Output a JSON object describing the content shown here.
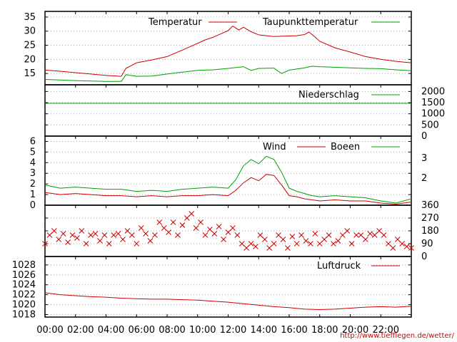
{
  "chart_data": [
    {
      "type": "line",
      "panel": "temperature",
      "ylim": [
        11,
        37
      ],
      "yticks": [
        15,
        20,
        25,
        30,
        35
      ],
      "series": [
        {
          "name": "Temperatur",
          "color": "#cc0000",
          "x": [
            0,
            1,
            2,
            3,
            4,
            5,
            5.3,
            6,
            7,
            8,
            9,
            10,
            10.5,
            11,
            11.5,
            12,
            12.3,
            12.7,
            13,
            13.5,
            14,
            15,
            16,
            16.5,
            17,
            17.3,
            17.7,
            18,
            19,
            20,
            21,
            22,
            23,
            24
          ],
          "y": [
            16.2,
            15.8,
            15.3,
            14.8,
            14.3,
            14.0,
            16.8,
            18.8,
            19.8,
            21.0,
            23.3,
            25.7,
            26.9,
            27.8,
            29.0,
            30.2,
            31.8,
            30.4,
            31.4,
            29.8,
            28.7,
            28.1,
            28.3,
            28.4,
            28.8,
            29.7,
            27.9,
            26.4,
            24.1,
            22.6,
            21.0,
            20.0,
            19.3,
            18.8
          ]
        },
        {
          "name": "Taupunkttemperatur",
          "color": "#00a000",
          "x": [
            0,
            1,
            2,
            3,
            4,
            5,
            5.3,
            6,
            7,
            8,
            9,
            10,
            11,
            12,
            13,
            13.5,
            14,
            15,
            15.5,
            16,
            17,
            17.5,
            18,
            19,
            20,
            21,
            22,
            23,
            24
          ],
          "y": [
            12.9,
            12.7,
            12.5,
            12.3,
            12.2,
            12.2,
            14.6,
            14.0,
            14.1,
            14.8,
            15.5,
            16.1,
            16.3,
            16.8,
            17.4,
            16.1,
            16.8,
            16.9,
            15.0,
            16.2,
            17.0,
            17.6,
            17.4,
            17.2,
            17.0,
            16.8,
            16.7,
            16.3,
            16.0
          ]
        }
      ]
    },
    {
      "type": "line",
      "panel": "precipitation",
      "ylim": [
        0,
        2300
      ],
      "yticks": [
        0,
        500,
        1000,
        1500,
        2000
      ],
      "series": [
        {
          "name": "Niederschlag",
          "color": "#00a000",
          "x": [
            0,
            24
          ],
          "y": [
            1470,
            1470
          ]
        }
      ]
    },
    {
      "type": "line",
      "panel": "wind",
      "ylim": [
        0,
        6.5
      ],
      "yticks": [
        0,
        1,
        2,
        3,
        4,
        5,
        6
      ],
      "right_labels": [
        "2",
        "3"
      ],
      "series": [
        {
          "name": "Wind",
          "color": "#cc0000",
          "x": [
            0,
            1,
            2,
            3,
            4,
            5,
            6,
            7,
            8,
            9,
            10,
            11,
            12,
            12.5,
            13,
            13.5,
            14,
            14.5,
            15,
            15.5,
            16,
            16.5,
            17,
            17.5,
            18,
            19,
            20,
            21,
            22,
            23,
            24
          ],
          "y": [
            1.2,
            1.0,
            1.1,
            1.0,
            0.9,
            0.9,
            0.8,
            0.9,
            0.8,
            0.9,
            0.9,
            1.0,
            0.9,
            1.4,
            2.1,
            2.6,
            2.3,
            2.9,
            2.8,
            1.9,
            0.9,
            0.8,
            0.6,
            0.5,
            0.4,
            0.5,
            0.4,
            0.4,
            0.2,
            0.1,
            0.3
          ]
        },
        {
          "name": "Boeen",
          "color": "#00a000",
          "x": [
            0,
            1,
            2,
            3,
            4,
            5,
            6,
            7,
            8,
            9,
            10,
            11,
            12,
            12.5,
            13,
            13.5,
            14,
            14.5,
            15,
            15.5,
            16,
            16.5,
            17,
            17.5,
            18,
            19,
            20,
            21,
            22,
            23,
            24
          ],
          "y": [
            1.9,
            1.6,
            1.7,
            1.6,
            1.5,
            1.5,
            1.3,
            1.4,
            1.3,
            1.5,
            1.6,
            1.7,
            1.6,
            2.4,
            3.7,
            4.3,
            3.9,
            4.6,
            4.3,
            3.1,
            1.6,
            1.3,
            1.1,
            0.9,
            0.8,
            0.9,
            0.8,
            0.7,
            0.4,
            0.2,
            0.6
          ]
        }
      ]
    },
    {
      "type": "scatter",
      "panel": "wind-direction",
      "ylim": [
        0,
        360
      ],
      "yticks": [
        0,
        90,
        180,
        270,
        360
      ],
      "series": [
        {
          "name": "",
          "color": "#cc0000",
          "x": [
            0,
            0.3,
            0.6,
            0.9,
            1.2,
            1.5,
            1.8,
            2.1,
            2.4,
            2.7,
            3.0,
            3.3,
            3.6,
            3.9,
            4.2,
            4.5,
            4.8,
            5.1,
            5.4,
            5.7,
            6.0,
            6.3,
            6.6,
            6.9,
            7.2,
            7.5,
            7.8,
            8.1,
            8.4,
            8.7,
            9.0,
            9.3,
            9.6,
            9.9,
            10.2,
            10.5,
            10.8,
            11.1,
            11.4,
            11.7,
            12.0,
            12.3,
            12.6,
            12.9,
            13.2,
            13.5,
            13.8,
            14.1,
            14.4,
            14.7,
            15.0,
            15.3,
            15.6,
            15.9,
            16.2,
            16.5,
            16.8,
            17.1,
            17.4,
            17.7,
            18.0,
            18.3,
            18.6,
            18.9,
            19.2,
            19.5,
            19.8,
            20.1,
            20.4,
            20.7,
            21.0,
            21.3,
            21.6,
            21.9,
            22.2,
            22.5,
            22.8,
            23.1,
            23.4,
            23.7,
            24.0
          ],
          "y": [
            90,
            150,
            180,
            120,
            160,
            100,
            150,
            130,
            180,
            90,
            150,
            160,
            110,
            150,
            90,
            150,
            160,
            120,
            180,
            150,
            90,
            200,
            160,
            110,
            150,
            240,
            200,
            170,
            240,
            150,
            220,
            270,
            300,
            200,
            240,
            150,
            190,
            160,
            210,
            120,
            170,
            200,
            150,
            90,
            60,
            90,
            70,
            150,
            120,
            60,
            90,
            150,
            120,
            60,
            140,
            90,
            150,
            110,
            90,
            160,
            90,
            120,
            150,
            90,
            110,
            150,
            180,
            90,
            150,
            150,
            120,
            160,
            150,
            180,
            150,
            90,
            60,
            120,
            90,
            70,
            60
          ]
        }
      ]
    },
    {
      "type": "line",
      "panel": "pressure",
      "ylim": [
        1017.5,
        1029.7
      ],
      "yticks": [
        1018,
        1020,
        1022,
        1024,
        1026,
        1028
      ],
      "series": [
        {
          "name": "Luftdruck",
          "color": "#cc0000",
          "x": [
            0,
            1,
            2,
            3,
            4,
            5,
            6,
            7,
            8,
            9,
            10,
            11,
            12,
            13,
            14,
            15,
            16,
            17,
            18,
            19,
            20,
            21,
            22,
            23,
            24
          ],
          "y": [
            1022.4,
            1022.0,
            1021.8,
            1021.6,
            1021.5,
            1021.3,
            1021.2,
            1021.1,
            1021.1,
            1021.0,
            1020.9,
            1020.7,
            1020.5,
            1020.2,
            1019.9,
            1019.6,
            1019.4,
            1019.1,
            1019.0,
            1019.1,
            1019.3,
            1019.5,
            1019.6,
            1019.5,
            1019.7
          ]
        }
      ]
    }
  ],
  "x_axis": {
    "ticks": [
      "00:00",
      "02:00",
      "04:00",
      "06:00",
      "08:00",
      "10:00",
      "12:00",
      "14:00",
      "16:00",
      "18:00",
      "20:00",
      "22:00"
    ]
  },
  "footer": {
    "url": "http://www.tiefflegen.de/wetter/"
  }
}
